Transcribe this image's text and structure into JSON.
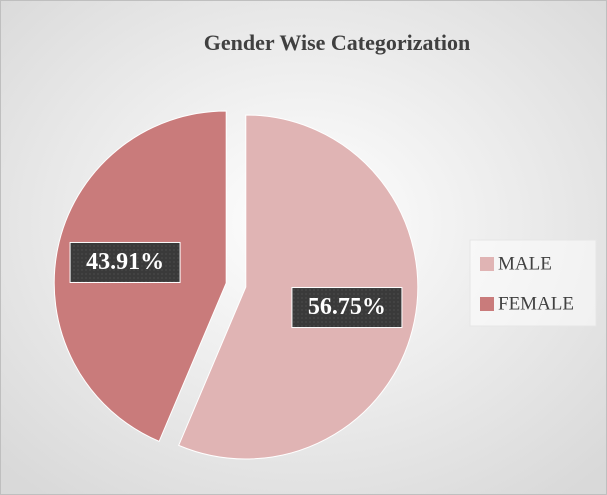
{
  "chart_data": {
    "type": "pie",
    "title": "Gender Wise Categorization",
    "categories": [
      "MALE",
      "FEMALE"
    ],
    "values": [
      56.75,
      43.91
    ],
    "value_labels": [
      "56.75%",
      "43.91%"
    ],
    "colors": [
      "#e0b4b4",
      "#c97b7b"
    ],
    "legend": "right"
  }
}
